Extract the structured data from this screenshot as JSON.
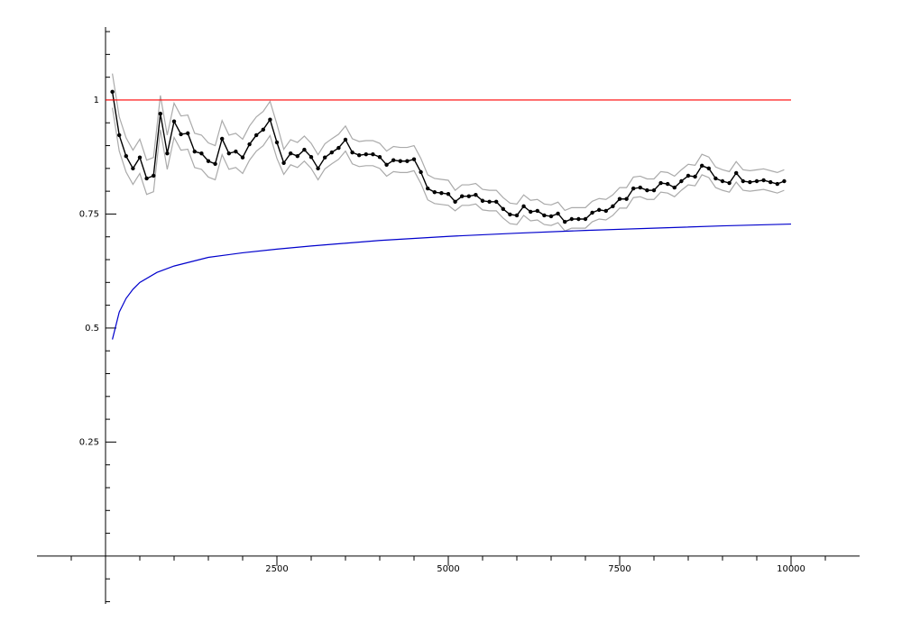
{
  "chart_data": {
    "type": "line",
    "xlim": [
      -1000,
      11000
    ],
    "ylim": [
      -0.105,
      1.16
    ],
    "xticks": [
      2500,
      5000,
      7500,
      10000
    ],
    "yticks": [
      0.25,
      0.5,
      0.75,
      1
    ],
    "xminorticks": [
      -500,
      500,
      1000,
      1500,
      2000,
      3000,
      3500,
      4000,
      4500,
      5500,
      6000,
      6500,
      7000,
      8000,
      8500,
      9000,
      9500,
      10500
    ],
    "yminorticks": [
      -0.1,
      -0.05,
      0.05,
      0.1,
      0.15,
      0.2,
      0.3,
      0.35,
      0.4,
      0.45,
      0.55,
      0.6,
      0.65,
      0.7,
      0.8,
      0.85,
      0.9,
      0.95,
      1.05,
      1.1,
      1.15
    ],
    "x": [
      100,
      200,
      300,
      400,
      500,
      600,
      700,
      800,
      900,
      1000,
      1100,
      1200,
      1300,
      1400,
      1500,
      1600,
      1700,
      1800,
      1900,
      2000,
      2100,
      2200,
      2300,
      2400,
      2500,
      2600,
      2700,
      2800,
      2900,
      3000,
      3100,
      3200,
      3300,
      3400,
      3500,
      3600,
      3700,
      3800,
      3900,
      4000,
      4100,
      4200,
      4300,
      4400,
      4500,
      4600,
      4700,
      4800,
      4900,
      5000,
      5100,
      5200,
      5300,
      5400,
      5500,
      5600,
      5700,
      5800,
      5900,
      6000,
      6100,
      6200,
      6300,
      6400,
      6500,
      6600,
      6700,
      6800,
      6900,
      7000,
      7100,
      7200,
      7300,
      7400,
      7500,
      7600,
      7700,
      7800,
      7900,
      8000,
      8100,
      8200,
      8300,
      8400,
      8500,
      8600,
      8700,
      8800,
      8900,
      9000,
      9100,
      9200,
      9300,
      9400,
      9500,
      9600,
      9700,
      9800,
      9900
    ],
    "series": [
      {
        "color": "#aaaaaa",
        "markers": false,
        "values": [
          1.058,
          0.963,
          0.917,
          0.89,
          0.914,
          0.868,
          0.874,
          1.01,
          0.923,
          0.993,
          0.965,
          0.967,
          0.927,
          0.923,
          0.906,
          0.9,
          0.955,
          0.923,
          0.927,
          0.914,
          0.943,
          0.963,
          0.975,
          0.997,
          0.947,
          0.892,
          0.913,
          0.907,
          0.921,
          0.905,
          0.88,
          0.904,
          0.915,
          0.925,
          0.943,
          0.915,
          0.909,
          0.911,
          0.911,
          0.905,
          0.888,
          0.898,
          0.896,
          0.896,
          0.9,
          0.872,
          0.836,
          0.828,
          0.826,
          0.824,
          0.802,
          0.814,
          0.814,
          0.817,
          0.804,
          0.802,
          0.802,
          0.786,
          0.774,
          0.772,
          0.792,
          0.78,
          0.782,
          0.772,
          0.77,
          0.776,
          0.758,
          0.764,
          0.764,
          0.764,
          0.778,
          0.784,
          0.782,
          0.792,
          0.808,
          0.808,
          0.831,
          0.833,
          0.827,
          0.827,
          0.843,
          0.841,
          0.833,
          0.847,
          0.859,
          0.857,
          0.881,
          0.875,
          0.853,
          0.847,
          0.843,
          0.865,
          0.847,
          0.845,
          0.847,
          0.849,
          0.845,
          0.841,
          0.847
        ]
      },
      {
        "color": "#aaaaaa",
        "markers": false,
        "values": [
          0.983,
          0.888,
          0.842,
          0.815,
          0.839,
          0.793,
          0.799,
          0.935,
          0.848,
          0.918,
          0.89,
          0.892,
          0.852,
          0.848,
          0.831,
          0.825,
          0.88,
          0.848,
          0.852,
          0.839,
          0.868,
          0.888,
          0.9,
          0.922,
          0.872,
          0.837,
          0.858,
          0.852,
          0.866,
          0.85,
          0.825,
          0.849,
          0.86,
          0.87,
          0.888,
          0.86,
          0.854,
          0.856,
          0.856,
          0.85,
          0.833,
          0.843,
          0.841,
          0.841,
          0.845,
          0.817,
          0.781,
          0.773,
          0.771,
          0.769,
          0.757,
          0.769,
          0.769,
          0.772,
          0.759,
          0.757,
          0.757,
          0.741,
          0.729,
          0.727,
          0.747,
          0.735,
          0.737,
          0.727,
          0.725,
          0.731,
          0.713,
          0.719,
          0.719,
          0.719,
          0.733,
          0.739,
          0.737,
          0.747,
          0.763,
          0.763,
          0.786,
          0.788,
          0.782,
          0.782,
          0.798,
          0.796,
          0.788,
          0.802,
          0.814,
          0.812,
          0.836,
          0.83,
          0.808,
          0.802,
          0.798,
          0.82,
          0.802,
          0.8,
          0.802,
          0.804,
          0.8,
          0.796,
          0.802
        ]
      },
      {
        "color": "#000000",
        "markers": true,
        "values": [
          1.018,
          0.923,
          0.877,
          0.85,
          0.874,
          0.828,
          0.834,
          0.97,
          0.883,
          0.953,
          0.925,
          0.927,
          0.887,
          0.883,
          0.866,
          0.86,
          0.915,
          0.883,
          0.887,
          0.874,
          0.903,
          0.923,
          0.935,
          0.957,
          0.907,
          0.862,
          0.883,
          0.877,
          0.891,
          0.875,
          0.85,
          0.874,
          0.885,
          0.895,
          0.913,
          0.885,
          0.879,
          0.881,
          0.881,
          0.875,
          0.858,
          0.868,
          0.866,
          0.866,
          0.87,
          0.842,
          0.806,
          0.798,
          0.796,
          0.794,
          0.777,
          0.789,
          0.789,
          0.792,
          0.779,
          0.777,
          0.777,
          0.761,
          0.749,
          0.747,
          0.767,
          0.755,
          0.757,
          0.747,
          0.745,
          0.751,
          0.733,
          0.739,
          0.739,
          0.739,
          0.753,
          0.759,
          0.757,
          0.767,
          0.783,
          0.783,
          0.806,
          0.808,
          0.802,
          0.802,
          0.818,
          0.816,
          0.808,
          0.822,
          0.834,
          0.832,
          0.856,
          0.85,
          0.828,
          0.822,
          0.818,
          0.84,
          0.822,
          0.82,
          0.822,
          0.824,
          0.82,
          0.816,
          0.822
        ]
      },
      {
        "color": "#ff0000",
        "markers": false,
        "x": [
          0,
          10000
        ],
        "values": [
          1,
          1
        ]
      },
      {
        "color": "#0000cc",
        "markers": false,
        "x": [
          100,
          200,
          300,
          400,
          500,
          750,
          1000,
          1500,
          2000,
          2500,
          3000,
          4000,
          5000,
          6000,
          7000,
          8000,
          9000,
          10000
        ],
        "values": [
          0.475,
          0.535,
          0.565,
          0.585,
          0.6,
          0.622,
          0.636,
          0.655,
          0.665,
          0.673,
          0.68,
          0.692,
          0.701,
          0.708,
          0.714,
          0.719,
          0.724,
          0.728
        ]
      }
    ]
  }
}
